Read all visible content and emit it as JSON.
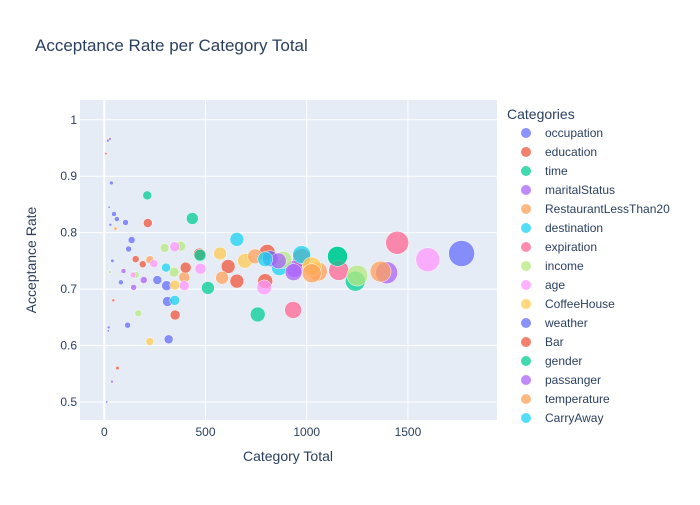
{
  "chart_data": {
    "type": "scatter",
    "title": "Acceptance Rate per Category Total",
    "xlabel": "Category Total",
    "ylabel": "Acceptance Rate",
    "xlim": [
      -120,
      1940
    ],
    "ylim": [
      0.468,
      1.035
    ],
    "x_ticks": [
      0,
      500,
      1000,
      1500
    ],
    "x_tick_labels": [
      "0",
      "500",
      "1000",
      "1500"
    ],
    "y_ticks": [
      0.5,
      0.6,
      0.7,
      0.8,
      0.9,
      1.0
    ],
    "y_tick_labels": [
      "0.5",
      "0.6",
      "0.7",
      "0.8",
      "0.9",
      "1"
    ],
    "grid": true,
    "legend_position": "right",
    "legend_title": "Categories",
    "series": [
      {
        "name": "occupation",
        "color": "#636efa",
        "points": [
          {
            "x": 18,
            "y": 0.963,
            "size": 1.5
          },
          {
            "x": 22,
            "y": 0.632,
            "size": 1.5
          },
          {
            "x": 35,
            "y": 0.888,
            "size": 2
          },
          {
            "x": 48,
            "y": 0.833,
            "size": 2.5
          },
          {
            "x": 62,
            "y": 0.824,
            "size": 2.5
          },
          {
            "x": 82,
            "y": 0.712,
            "size": 2.5
          },
          {
            "x": 105,
            "y": 0.818,
            "size": 3
          },
          {
            "x": 115,
            "y": 0.636,
            "size": 3
          },
          {
            "x": 135,
            "y": 0.787,
            "size": 3.5
          },
          {
            "x": 318,
            "y": 0.611,
            "size": 4.5
          },
          {
            "x": 312,
            "y": 0.678,
            "size": 5
          },
          {
            "x": 308,
            "y": 0.706,
            "size": 5
          },
          {
            "x": 262,
            "y": 0.716,
            "size": 4.5
          },
          {
            "x": 1765,
            "y": 0.763,
            "size": 13
          }
        ]
      },
      {
        "name": "education",
        "color": "#EF553B",
        "points": [
          {
            "x": 8,
            "y": 0.94,
            "size": 1.2
          },
          {
            "x": 45,
            "y": 0.68,
            "size": 1.5
          },
          {
            "x": 65,
            "y": 0.56,
            "size": 1.8
          },
          {
            "x": 215,
            "y": 0.817,
            "size": 4.5
          },
          {
            "x": 350,
            "y": 0.654,
            "size": 5
          },
          {
            "x": 655,
            "y": 0.714,
            "size": 7
          },
          {
            "x": 795,
            "y": 0.714,
            "size": 7.5
          },
          {
            "x": 805,
            "y": 0.765,
            "size": 8
          },
          {
            "x": 975,
            "y": 0.756,
            "size": 9
          }
        ]
      },
      {
        "name": "time",
        "color": "#00cc96",
        "points": [
          {
            "x": 212,
            "y": 0.866,
            "size": 4.5
          },
          {
            "x": 435,
            "y": 0.825,
            "size": 6
          },
          {
            "x": 512,
            "y": 0.702,
            "size": 6.5
          },
          {
            "x": 758,
            "y": 0.655,
            "size": 7.5
          },
          {
            "x": 1152,
            "y": 0.758,
            "size": 10
          },
          {
            "x": 1240,
            "y": 0.714,
            "size": 10
          }
        ]
      },
      {
        "name": "maritalStatus",
        "color": "#ab63fa",
        "points": [
          {
            "x": 28,
            "y": 0.966,
            "size": 1.5
          },
          {
            "x": 38,
            "y": 0.536,
            "size": 1.5
          },
          {
            "x": 95,
            "y": 0.732,
            "size": 2.5
          },
          {
            "x": 195,
            "y": 0.716,
            "size": 3.5
          },
          {
            "x": 940,
            "y": 0.736,
            "size": 8.5
          },
          {
            "x": 1395,
            "y": 0.729,
            "size": 11
          }
        ]
      },
      {
        "name": "RestaurantLessThan20",
        "color": "#FFA15A",
        "points": [
          {
            "x": 55,
            "y": 0.807,
            "size": 1.8
          },
          {
            "x": 225,
            "y": 0.752,
            "size": 4
          },
          {
            "x": 395,
            "y": 0.721,
            "size": 5.5
          },
          {
            "x": 1055,
            "y": 0.731,
            "size": 9.5
          },
          {
            "x": 1365,
            "y": 0.731,
            "size": 10.5
          }
        ]
      },
      {
        "name": "destination",
        "color": "#19d3f3",
        "points": [
          {
            "x": 348,
            "y": 0.68,
            "size": 5
          },
          {
            "x": 655,
            "y": 0.788,
            "size": 7
          },
          {
            "x": 865,
            "y": 0.738,
            "size": 8
          },
          {
            "x": 975,
            "y": 0.761,
            "size": 9
          }
        ]
      },
      {
        "name": "expiration",
        "color": "#FF6692",
        "points": [
          {
            "x": 933,
            "y": 0.663,
            "size": 8.5
          },
          {
            "x": 1158,
            "y": 0.733,
            "size": 10
          },
          {
            "x": 1447,
            "y": 0.782,
            "size": 11.5
          }
        ]
      },
      {
        "name": "income",
        "color": "#B6E880",
        "points": [
          {
            "x": 28,
            "y": 0.73,
            "size": 1.5
          },
          {
            "x": 155,
            "y": 0.725,
            "size": 3.5
          },
          {
            "x": 168,
            "y": 0.657,
            "size": 3.5
          },
          {
            "x": 298,
            "y": 0.773,
            "size": 4.5
          },
          {
            "x": 378,
            "y": 0.776,
            "size": 5
          },
          {
            "x": 345,
            "y": 0.73,
            "size": 5
          },
          {
            "x": 885,
            "y": 0.752,
            "size": 8.5
          },
          {
            "x": 1250,
            "y": 0.724,
            "size": 10.5
          }
        ]
      },
      {
        "name": "age",
        "color": "#FF97FF",
        "points": [
          {
            "x": 142,
            "y": 0.725,
            "size": 3
          },
          {
            "x": 245,
            "y": 0.745,
            "size": 4
          },
          {
            "x": 348,
            "y": 0.775,
            "size": 5
          },
          {
            "x": 395,
            "y": 0.706,
            "size": 5
          },
          {
            "x": 475,
            "y": 0.736,
            "size": 5.5
          },
          {
            "x": 790,
            "y": 0.703,
            "size": 7.5
          },
          {
            "x": 1598,
            "y": 0.752,
            "size": 12
          }
        ]
      },
      {
        "name": "CoffeeHouse",
        "color": "#FECB52",
        "points": [
          {
            "x": 225,
            "y": 0.607,
            "size": 4
          },
          {
            "x": 348,
            "y": 0.707,
            "size": 5
          },
          {
            "x": 572,
            "y": 0.763,
            "size": 6.5
          },
          {
            "x": 695,
            "y": 0.75,
            "size": 7.5
          },
          {
            "x": 1025,
            "y": 0.74,
            "size": 9.5
          }
        ]
      },
      {
        "name": "weather",
        "color": "#636efa",
        "points": [
          {
            "x": 12,
            "y": 0.5,
            "size": 1.2
          },
          {
            "x": 20,
            "y": 0.626,
            "size": 1.2
          },
          {
            "x": 24,
            "y": 0.845,
            "size": 1.2
          },
          {
            "x": 30,
            "y": 0.814,
            "size": 1.5
          },
          {
            "x": 40,
            "y": 0.75,
            "size": 1.8
          },
          {
            "x": 120,
            "y": 0.771,
            "size": 3
          },
          {
            "x": 820,
            "y": 0.754,
            "size": 8
          }
        ]
      },
      {
        "name": "Bar",
        "color": "#EF553B",
        "points": [
          {
            "x": 155,
            "y": 0.753,
            "size": 3.5
          },
          {
            "x": 190,
            "y": 0.744,
            "size": 3.5
          },
          {
            "x": 402,
            "y": 0.738,
            "size": 5.5
          },
          {
            "x": 470,
            "y": 0.762,
            "size": 6
          },
          {
            "x": 612,
            "y": 0.74,
            "size": 7
          }
        ]
      },
      {
        "name": "gender",
        "color": "#00cc96",
        "points": [
          {
            "x": 1152,
            "y": 0.758,
            "size": 10
          },
          {
            "x": 473,
            "y": 0.76,
            "size": 6
          }
        ]
      },
      {
        "name": "passanger",
        "color": "#ab63fa",
        "points": [
          {
            "x": 145,
            "y": 0.703,
            "size": 3
          },
          {
            "x": 860,
            "y": 0.75,
            "size": 8
          },
          {
            "x": 935,
            "y": 0.73,
            "size": 8.5
          }
        ]
      },
      {
        "name": "temperature",
        "color": "#FFA15A",
        "points": [
          {
            "x": 582,
            "y": 0.72,
            "size": 6.5
          },
          {
            "x": 745,
            "y": 0.758,
            "size": 7.5
          },
          {
            "x": 1025,
            "y": 0.728,
            "size": 9.5
          }
        ]
      },
      {
        "name": "CarryAway",
        "color": "#19d3f3",
        "points": [
          {
            "x": 795,
            "y": 0.753,
            "size": 7.5
          },
          {
            "x": 305,
            "y": 0.738,
            "size": 4.5
          }
        ]
      }
    ]
  }
}
